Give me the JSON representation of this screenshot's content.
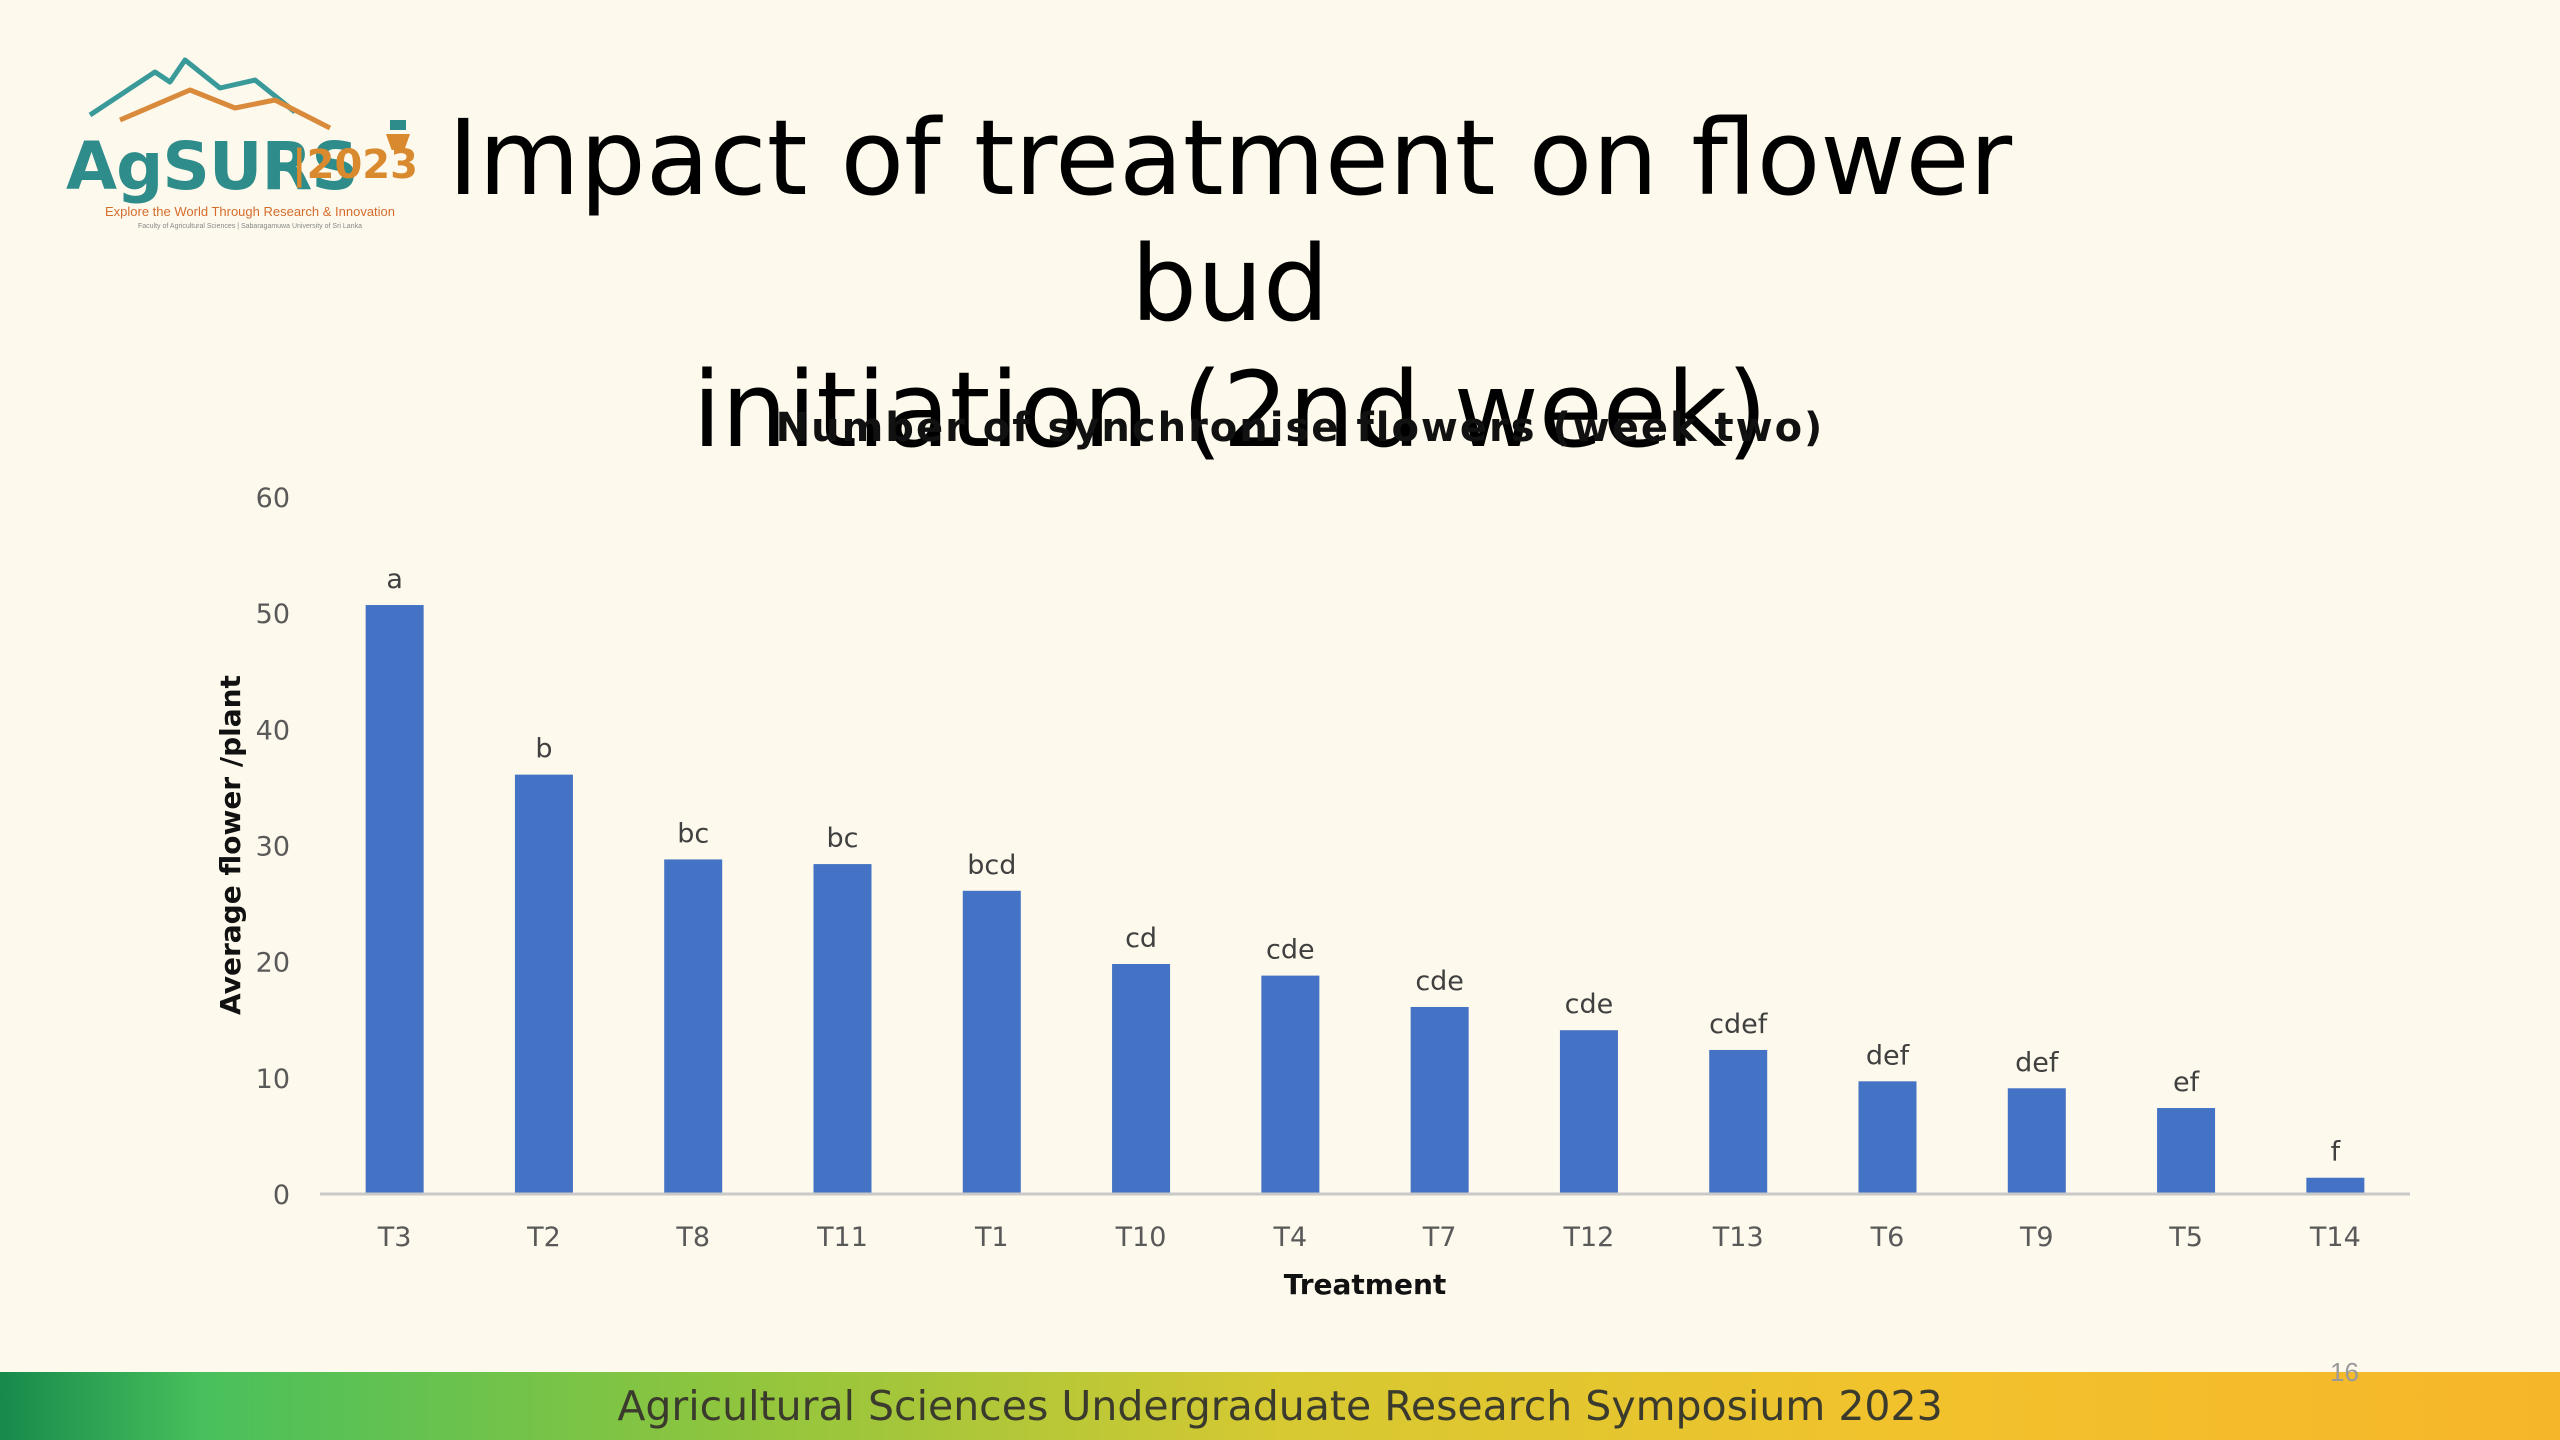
{
  "logo": {
    "name": "AgSURS",
    "year": "|2023",
    "tagline": "Explore the World Through Research & Innovation",
    "subtitle": "Faculty of Agricultural Sciences | Sabaragamuwa University of Sri Lanka"
  },
  "slide": {
    "title_line1": "Impact of treatment on flower bud",
    "title_line2": "initiation (2nd week)",
    "footer": "Agricultural Sciences Undergraduate Research Symposium 2023",
    "page_number": "16"
  },
  "colors": {
    "bar": "#4472c4",
    "axis": "#c9c9c9",
    "tick_text": "#595959"
  },
  "chart_data": {
    "type": "bar",
    "title": "Number of synchronise flowers (week two)",
    "xlabel": "Treatment",
    "ylabel": "Average flower /plant",
    "ylim": [
      0,
      60
    ],
    "yticks": [
      0,
      10,
      20,
      30,
      40,
      50,
      60
    ],
    "grid": false,
    "categories": [
      "T3",
      "T2",
      "T8",
      "T11",
      "T1",
      "T10",
      "T4",
      "T7",
      "T12",
      "T13",
      "T6",
      "T9",
      "T5",
      "T14"
    ],
    "values": [
      50.7,
      36.1,
      28.8,
      28.4,
      26.1,
      19.8,
      18.8,
      16.1,
      14.1,
      12.4,
      9.7,
      9.1,
      7.4,
      1.4
    ],
    "data_labels": [
      "a",
      "b",
      "bc",
      "bc",
      "bcd",
      "cd",
      "cde",
      "cde",
      "cde",
      "cdef",
      "def",
      "def",
      "ef",
      "f"
    ]
  }
}
